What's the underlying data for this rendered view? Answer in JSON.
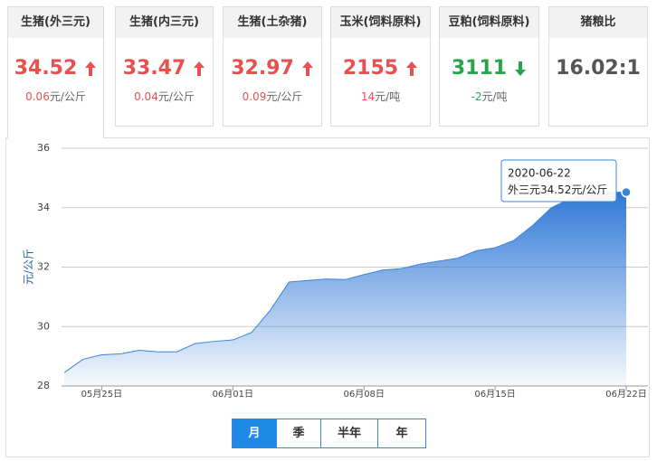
{
  "cards": [
    {
      "title": "生猪(外三元)",
      "price": "34.52",
      "trend": "up",
      "change": "0.06",
      "unit": "元/公斤"
    },
    {
      "title": "生猪(内三元)",
      "price": "33.47",
      "trend": "up",
      "change": "0.04",
      "unit": "元/公斤"
    },
    {
      "title": "生猪(土杂猪)",
      "price": "32.97",
      "trend": "up",
      "change": "0.09",
      "unit": "元/公斤"
    },
    {
      "title": "玉米(饲料原料)",
      "price": "2155",
      "trend": "up",
      "change": "14",
      "unit": "元/吨"
    },
    {
      "title": "豆粕(饲料原料)",
      "price": "3111",
      "trend": "down",
      "change": "-2",
      "unit": "元/吨"
    },
    {
      "title": "猪粮比",
      "price": "16.02:1"
    }
  ],
  "chart_data": {
    "type": "area",
    "ylabel": "元/公斤",
    "categories": [
      null,
      null,
      "05月25日",
      null,
      null,
      null,
      null,
      null,
      null,
      "06月01日",
      null,
      null,
      null,
      null,
      null,
      null,
      "06月08日",
      null,
      null,
      null,
      null,
      null,
      null,
      "06月15日",
      null,
      null,
      null,
      null,
      null,
      null,
      "06月22日"
    ],
    "series": [
      {
        "name": "外三元",
        "color": "#3a84dc",
        "values": [
          28.45,
          28.9,
          29.05,
          29.08,
          29.2,
          29.15,
          29.15,
          29.43,
          29.5,
          29.55,
          29.8,
          30.55,
          31.5,
          31.55,
          31.6,
          31.58,
          31.75,
          31.9,
          31.95,
          32.1,
          32.2,
          32.3,
          32.55,
          32.65,
          32.9,
          33.4,
          34.0,
          34.3,
          34.52,
          34.52,
          34.52
        ]
      }
    ],
    "ylim": [
      28,
      36
    ],
    "yticks": [
      28,
      30,
      32,
      34,
      36
    ],
    "grid": true,
    "tooltip": {
      "date": "2020-06-22"
    }
  },
  "tabs": {
    "items": [
      "月",
      "季",
      "半年",
      "年"
    ],
    "active": 0
  }
}
